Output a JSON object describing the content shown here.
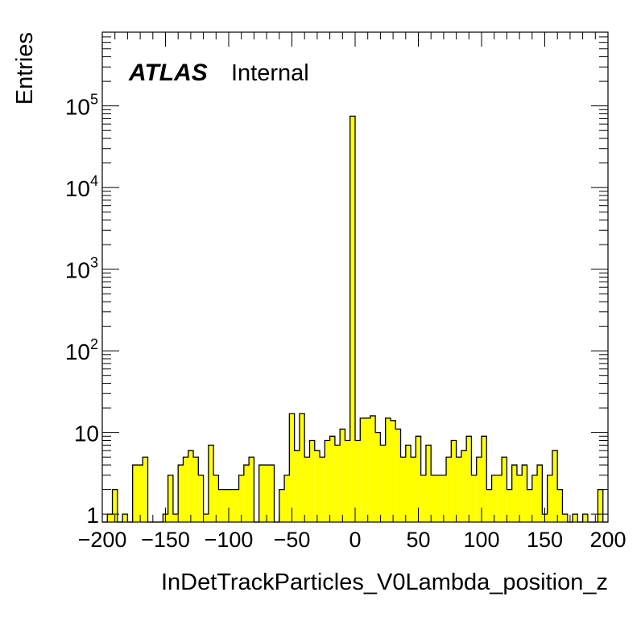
{
  "chart_data": {
    "type": "bar",
    "histogram": true,
    "xlabel": "InDetTrackParticles_V0Lambda_position_z",
    "ylabel": "Entries",
    "xlim": [
      -200,
      200
    ],
    "ylim": [
      0.8,
      800000
    ],
    "yscale": "log",
    "bin_width": 4,
    "fill_color": "#ffff00",
    "line_color": "#000000",
    "x_ticks": [
      -200,
      -150,
      -100,
      -50,
      0,
      50,
      100,
      150,
      200
    ],
    "x_tick_labels": [
      "−200",
      "−150",
      "−100",
      "−50",
      "0",
      "50",
      "100",
      "150",
      "200"
    ],
    "y_ticks": [
      {
        "value": 1,
        "base": "1",
        "exp": ""
      },
      {
        "value": 10,
        "base": "10",
        "exp": ""
      },
      {
        "value": 100,
        "base": "10",
        "exp": "2"
      },
      {
        "value": 1000,
        "base": "10",
        "exp": "3"
      },
      {
        "value": 10000,
        "base": "10",
        "exp": "4"
      },
      {
        "value": 100000,
        "base": "10",
        "exp": "5"
      }
    ],
    "bin_edges_low": [
      -200,
      -196,
      -192,
      -188,
      -184,
      -180,
      -176,
      -172,
      -168,
      -164,
      -160,
      -156,
      -152,
      -148,
      -144,
      -140,
      -136,
      -132,
      -128,
      -124,
      -120,
      -116,
      -112,
      -108,
      -104,
      -100,
      -96,
      -92,
      -88,
      -84,
      -80,
      -76,
      -72,
      -68,
      -64,
      -60,
      -56,
      -52,
      -48,
      -44,
      -40,
      -36,
      -32,
      -28,
      -24,
      -20,
      -16,
      -12,
      -8,
      -4,
      0,
      4,
      8,
      12,
      16,
      20,
      24,
      28,
      32,
      36,
      40,
      44,
      48,
      52,
      56,
      60,
      64,
      68,
      72,
      76,
      80,
      84,
      88,
      92,
      96,
      100,
      104,
      108,
      112,
      116,
      120,
      124,
      128,
      132,
      136,
      140,
      144,
      148,
      152,
      156,
      160,
      164,
      168,
      172,
      176,
      180,
      184,
      188,
      192,
      196
    ],
    "counts": [
      0,
      1,
      2,
      0,
      1,
      0,
      4,
      4,
      5,
      0,
      0,
      0,
      1,
      3,
      1,
      4,
      5,
      6,
      5,
      3,
      1,
      7,
      3,
      2,
      2,
      2,
      2,
      3,
      4,
      5,
      0,
      4,
      4,
      4,
      0,
      2,
      3,
      17,
      6,
      17,
      5,
      8,
      6,
      5,
      8,
      9,
      7,
      11,
      8,
      75000,
      8,
      15,
      15,
      16,
      10,
      7,
      15,
      14,
      11,
      5,
      7,
      5,
      9,
      3,
      7,
      3,
      3,
      3,
      5,
      8,
      5,
      6,
      9,
      3,
      5,
      9,
      2,
      3,
      3,
      5,
      2,
      4,
      3,
      4,
      2,
      3,
      4,
      1,
      3,
      6,
      2,
      1,
      0,
      1,
      0,
      1,
      0,
      0,
      2,
      0
    ]
  },
  "annotations": {
    "atlas": "ATLAS",
    "status": "Internal"
  }
}
